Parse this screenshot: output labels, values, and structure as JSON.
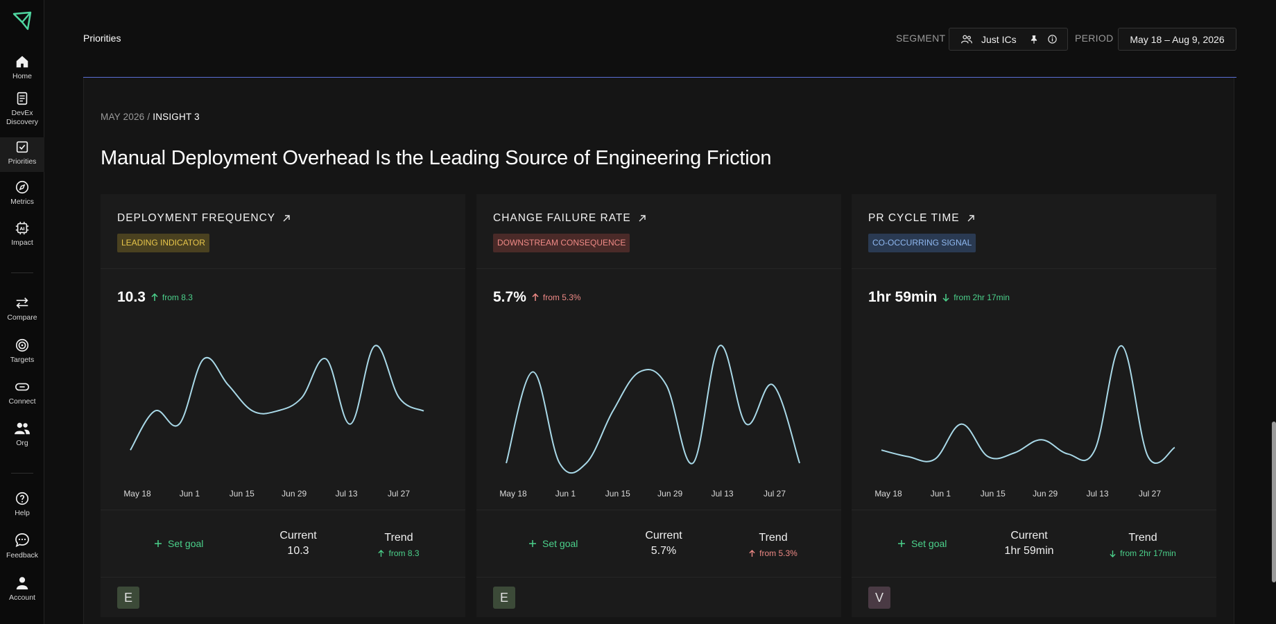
{
  "sidebar": {
    "items": [
      {
        "label": "Home",
        "icon": "home-icon"
      },
      {
        "label": "DevEx Discovery",
        "icon": "clipboard-icon"
      },
      {
        "label": "Priorities",
        "icon": "checkbox-icon"
      },
      {
        "label": "Metrics",
        "icon": "compass-icon"
      },
      {
        "label": "Impact",
        "icon": "ai-chip-icon"
      },
      {
        "label": "Compare",
        "icon": "arrows-icon"
      },
      {
        "label": "Targets",
        "icon": "target-icon"
      },
      {
        "label": "Connect",
        "icon": "link-icon"
      },
      {
        "label": "Org",
        "icon": "users-icon"
      },
      {
        "label": "Help",
        "icon": "help-icon"
      },
      {
        "label": "Feedback",
        "icon": "chat-icon"
      },
      {
        "label": "Account",
        "icon": "user-icon"
      }
    ],
    "active": "Priorities",
    "devex_line1": "DevEx",
    "devex_line2": "Discovery"
  },
  "header": {
    "title": "Priorities",
    "segment_label": "SEGMENT",
    "segment_value": "Just ICs",
    "period_label": "PERIOD",
    "period_value": "May 18 – Aug 9, 2026"
  },
  "breadcrumb": {
    "parent": "MAY 2026 /",
    "current": "INSIGHT 3"
  },
  "title": "Manual Deployment Overhead Is the Leading Source of Engineering Friction",
  "colors": {
    "accent_line": "#5b6fd6",
    "positive": "#4bd18b",
    "negative": "#ef8a86",
    "chart_line": "#a9d9e8"
  },
  "cards": [
    {
      "name": "DEPLOYMENT FREQUENCY",
      "tag": "LEADING INDICATOR",
      "value": "10.3",
      "delta": "from 8.3",
      "set_goal": "Set goal",
      "current_label": "Current",
      "current_value": "10.3",
      "trend_label": "Trend",
      "trend_value": "from 8.3",
      "avatar": "E"
    },
    {
      "name": "CHANGE FAILURE RATE",
      "tag": "DOWNSTREAM CONSEQUENCE",
      "value": "5.7%",
      "delta": "from 5.3%",
      "set_goal": "Set goal",
      "current_label": "Current",
      "current_value": "5.7%",
      "trend_label": "Trend",
      "trend_value": "from 5.3%",
      "avatar": "E"
    },
    {
      "name": "PR CYCLE TIME",
      "tag": "CO-OCCURRING SIGNAL",
      "value": "1hr 59min",
      "delta": "from 2hr 17min",
      "set_goal": "Set goal",
      "current_label": "Current",
      "current_value": "1hr 59min",
      "trend_label": "Trend",
      "trend_value": "from 2hr 17min",
      "avatar": "V"
    }
  ],
  "chart_data": [
    {
      "type": "line",
      "x_ticks": [
        "May 18",
        "Jun 1",
        "Jun 15",
        "Jun 29",
        "Jul 13",
        "Jul 27"
      ],
      "series": [
        {
          "values": [
            1,
            4,
            3,
            8,
            6,
            4,
            4,
            5,
            8,
            3,
            9,
            5,
            4
          ]
        }
      ],
      "ylim": [
        0,
        10
      ]
    },
    {
      "type": "line",
      "x_ticks": [
        "May 18",
        "Jun 1",
        "Jun 15",
        "Jun 29",
        "Jul 13",
        "Jul 27"
      ],
      "series": [
        {
          "values": [
            0,
            7,
            0,
            0,
            4,
            7,
            6,
            0,
            9,
            3,
            6,
            0
          ]
        }
      ],
      "ylim": [
        0,
        10
      ]
    },
    {
      "type": "line",
      "x_ticks": [
        "May 18",
        "Jun 1",
        "Jun 15",
        "Jun 29",
        "Jul 13",
        "Jul 27"
      ],
      "series": [
        {
          "values": [
            1,
            0.5,
            0.3,
            3,
            0.5,
            0.8,
            1.8,
            0.7,
            1,
            9,
            0.5,
            1.2
          ]
        }
      ],
      "ylim": [
        0,
        10
      ]
    }
  ]
}
